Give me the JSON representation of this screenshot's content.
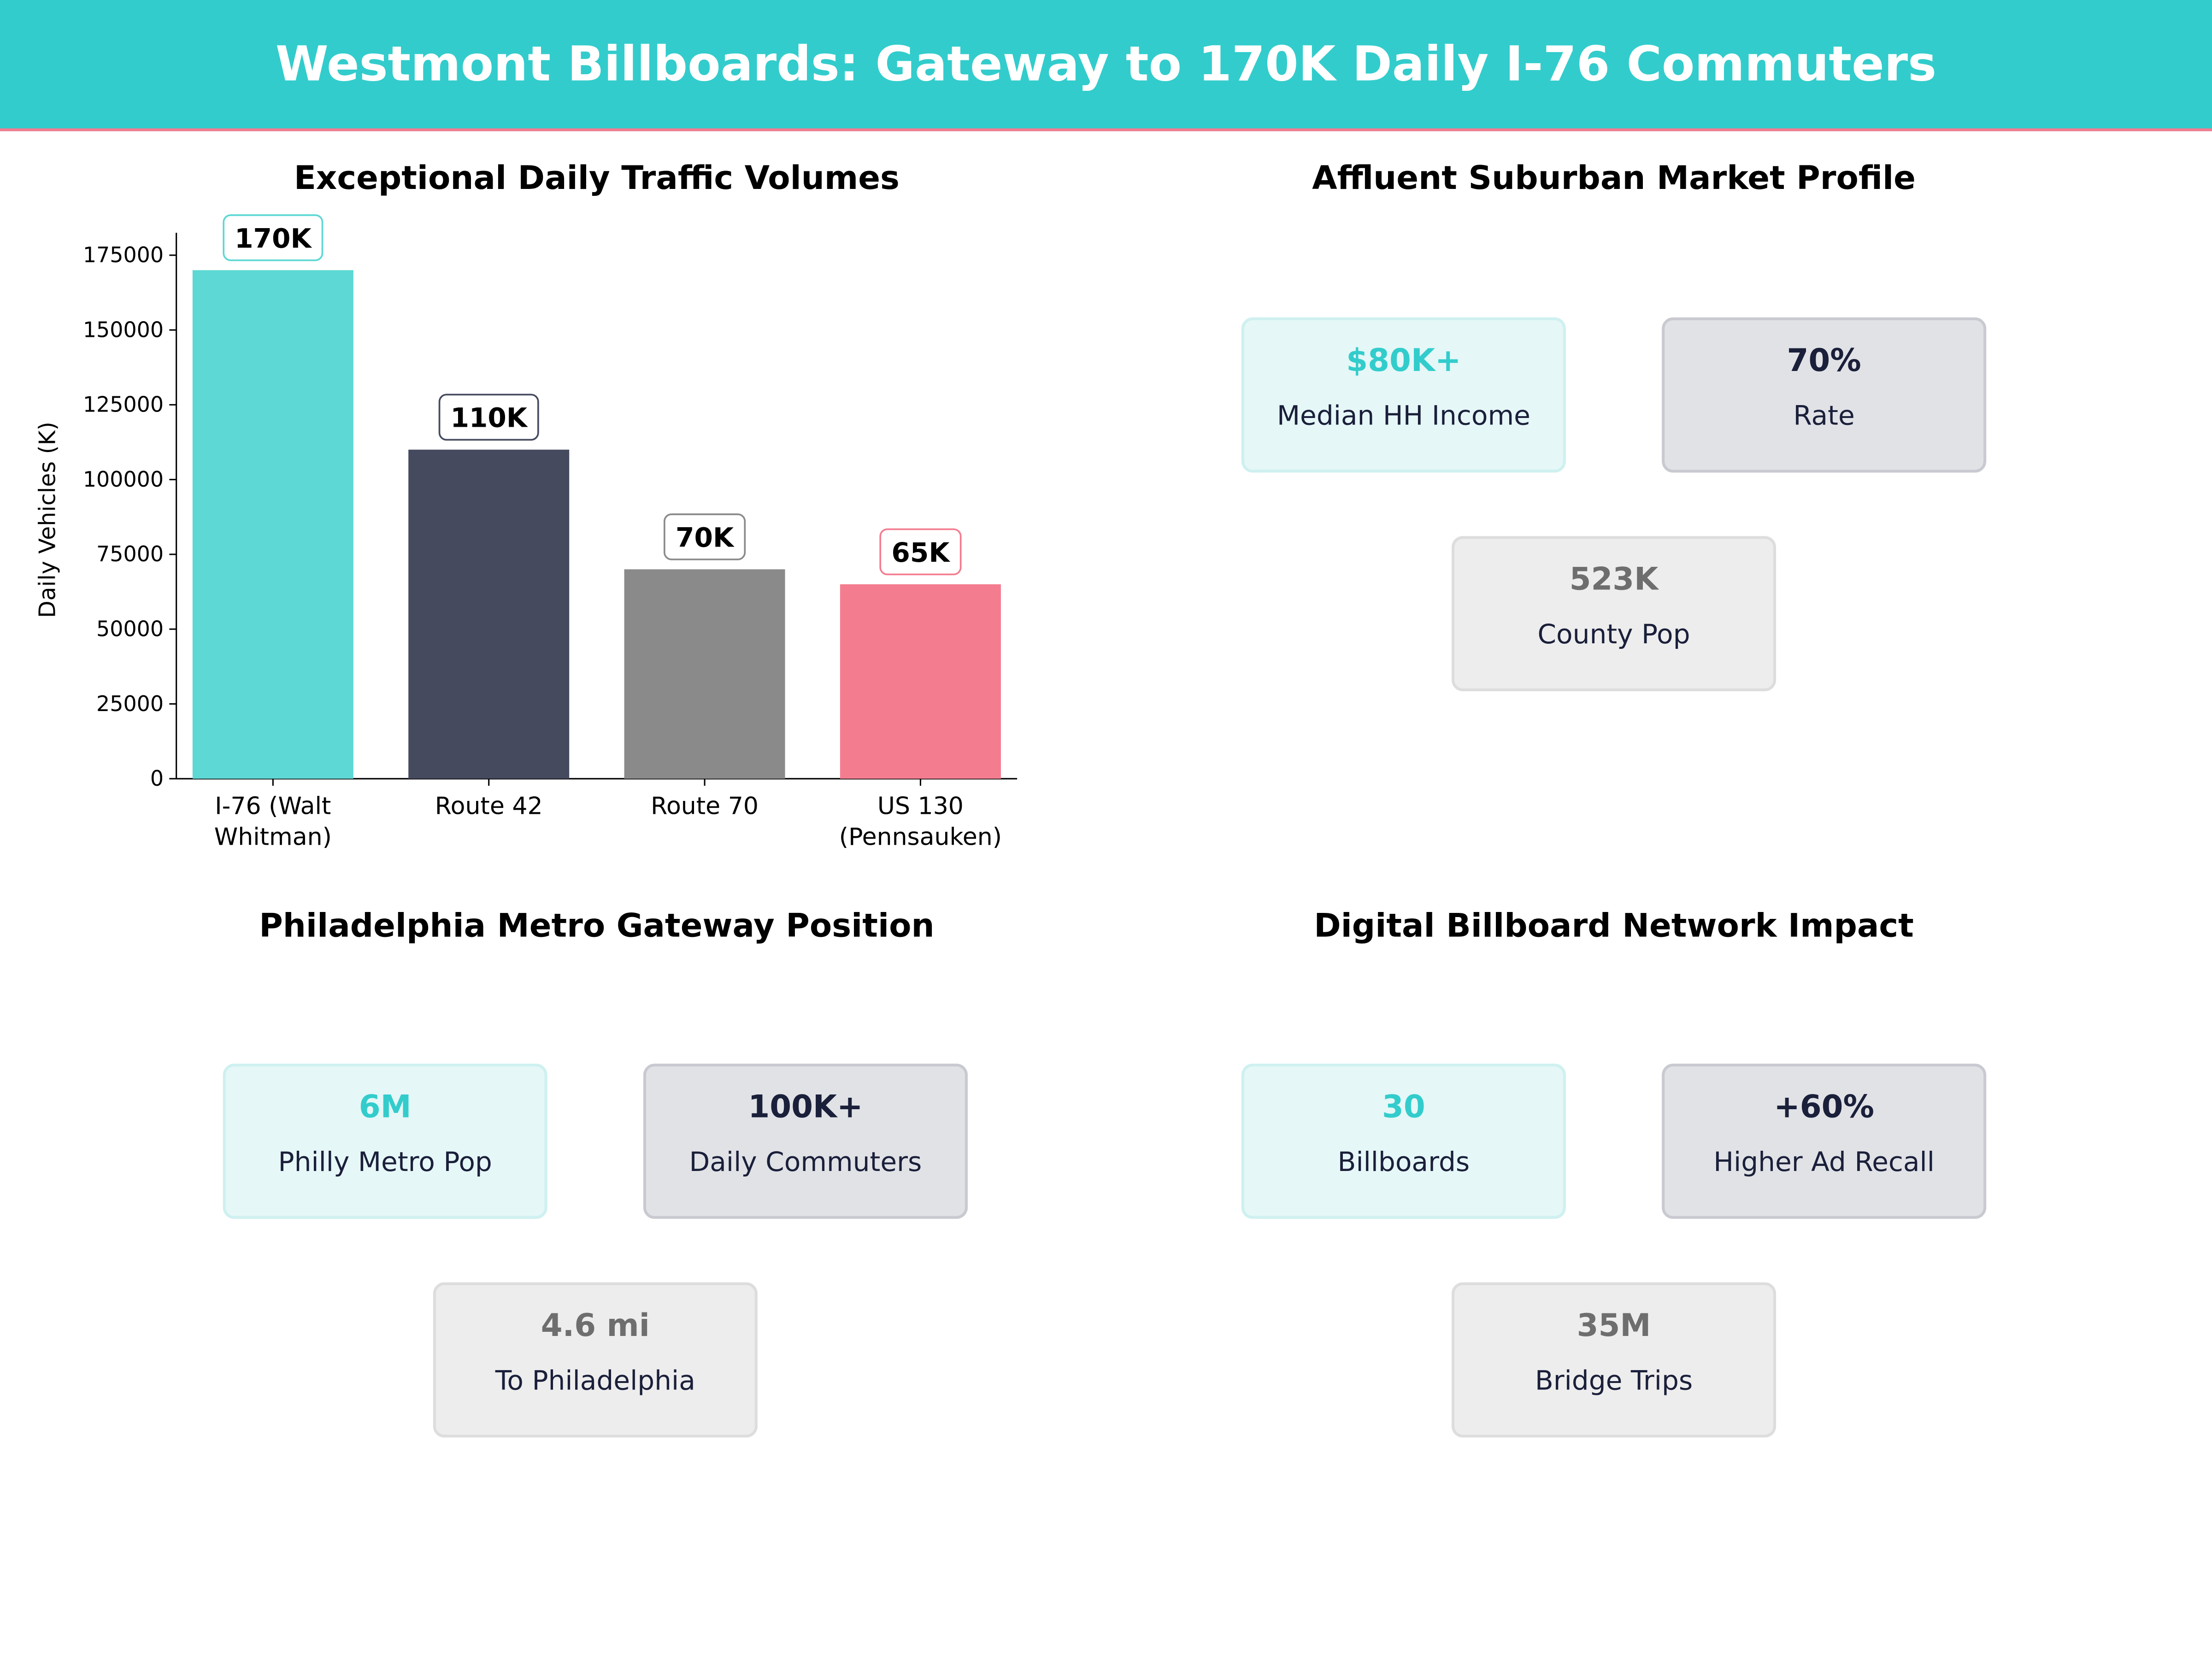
{
  "header": {
    "title": "Westmont Billboards: Gateway to 170K Daily I-76 Commuters"
  },
  "colors": {
    "header_bg": "#33CCCC",
    "accent_line": "#F47C8F"
  },
  "chart_data": {
    "type": "bar",
    "title": "Exceptional Daily Traffic Volumes",
    "xlabel": "",
    "ylabel": "Daily Vehicles (K)",
    "categories": [
      [
        "I-76 (Walt",
        "Whitman)"
      ],
      [
        "Route 42"
      ],
      [
        "Route 70"
      ],
      [
        "US 130",
        "(Pennsauken)"
      ]
    ],
    "values": [
      170000,
      110000,
      70000,
      65000
    ],
    "data_labels": [
      "170K",
      "110K",
      "70K",
      "65K"
    ],
    "bar_colors": [
      "#5DD8D4",
      "#464A5F",
      "#8A8A8A",
      "#F47C8F"
    ],
    "label_border_colors": [
      "#5DD8D4",
      "#464A5F",
      "#8A8A8A",
      "#F47C8F"
    ],
    "yticks": [
      0,
      25000,
      50000,
      75000,
      100000,
      125000,
      150000,
      175000
    ],
    "ylim": [
      0,
      182500
    ],
    "grid": false,
    "legend": "none"
  },
  "panels": [
    {
      "title": "Affluent Suburban Market Profile",
      "cards": [
        {
          "value": "$80K+",
          "label": "Median HH Income"
        },
        {
          "value": "70%",
          "label": "Rate"
        },
        {
          "value": "523K",
          "label": "County Pop"
        }
      ]
    },
    {
      "title": "Philadelphia Metro Gateway Position",
      "cards": [
        {
          "value": "6M",
          "label": "Philly Metro Pop"
        },
        {
          "value": "100K+",
          "label": "Daily Commuters"
        },
        {
          "value": "4.6 mi",
          "label": "To Philadelphia"
        }
      ]
    },
    {
      "title": "Digital Billboard Network Impact",
      "cards": [
        {
          "value": "30",
          "label": "Billboards"
        },
        {
          "value": "+60%",
          "label": "Higher Ad Recall"
        },
        {
          "value": "35M",
          "label": "Bridge Trips"
        }
      ]
    }
  ]
}
